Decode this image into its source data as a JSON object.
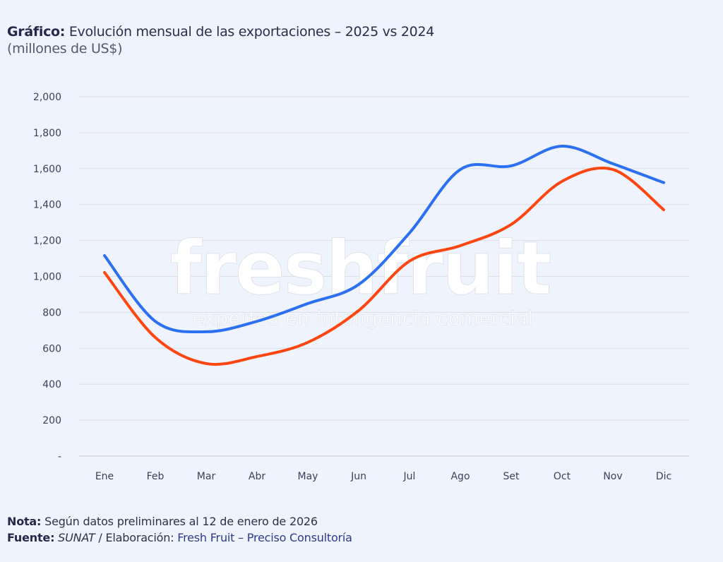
{
  "header": {
    "title_prefix": "Gráfico:",
    "title_text": " Evolución mensual de las exportaciones – 2025 vs 2024",
    "subtitle": "(millones de US$)"
  },
  "watermark": {
    "brand": "freshfruit",
    "tagline": "expertos en inteligencia comercial"
  },
  "footer": {
    "nota_label": "Nota:",
    "nota_text": " Según datos preliminares al 12 de enero de 2026",
    "fuente_label": "Fuente:",
    "fuente_source": " SUNAT",
    "fuente_sep": " / Elaboración: ",
    "fuente_credit": "Fresh Fruit – Preciso Consultoría"
  },
  "chart_data": {
    "type": "line",
    "title": "Evolución mensual de las exportaciones – 2025 vs 2024",
    "subtitle": "(millones de US$)",
    "xlabel": "",
    "ylabel": "",
    "categories": [
      "Ene",
      "Feb",
      "Mar",
      "Abr",
      "May",
      "Jun",
      "Jul",
      "Ago",
      "Set",
      "Oct",
      "Nov",
      "Dic"
    ],
    "ylim": [
      0,
      2000
    ],
    "yticks": [
      0,
      200,
      400,
      600,
      800,
      1000,
      1200,
      1400,
      1600,
      1800,
      2000
    ],
    "ytick_labels": [
      "-",
      "200",
      "400",
      "600",
      "800",
      "1,000",
      "1,200",
      "1,400",
      "1,600",
      "1,800",
      "2,000"
    ],
    "grid": true,
    "legend": "none",
    "series": [
      {
        "name": "2025",
        "color": "#2b6ff2",
        "values": [
          1116,
          750,
          692,
          750,
          849,
          955,
          1242,
          1595,
          1615,
          1725,
          1627,
          1522
        ]
      },
      {
        "name": "2024",
        "color": "#ff4611",
        "values": [
          1022,
          660,
          515,
          554,
          633,
          810,
          1085,
          1171,
          1289,
          1529,
          1595,
          1371
        ]
      }
    ]
  }
}
